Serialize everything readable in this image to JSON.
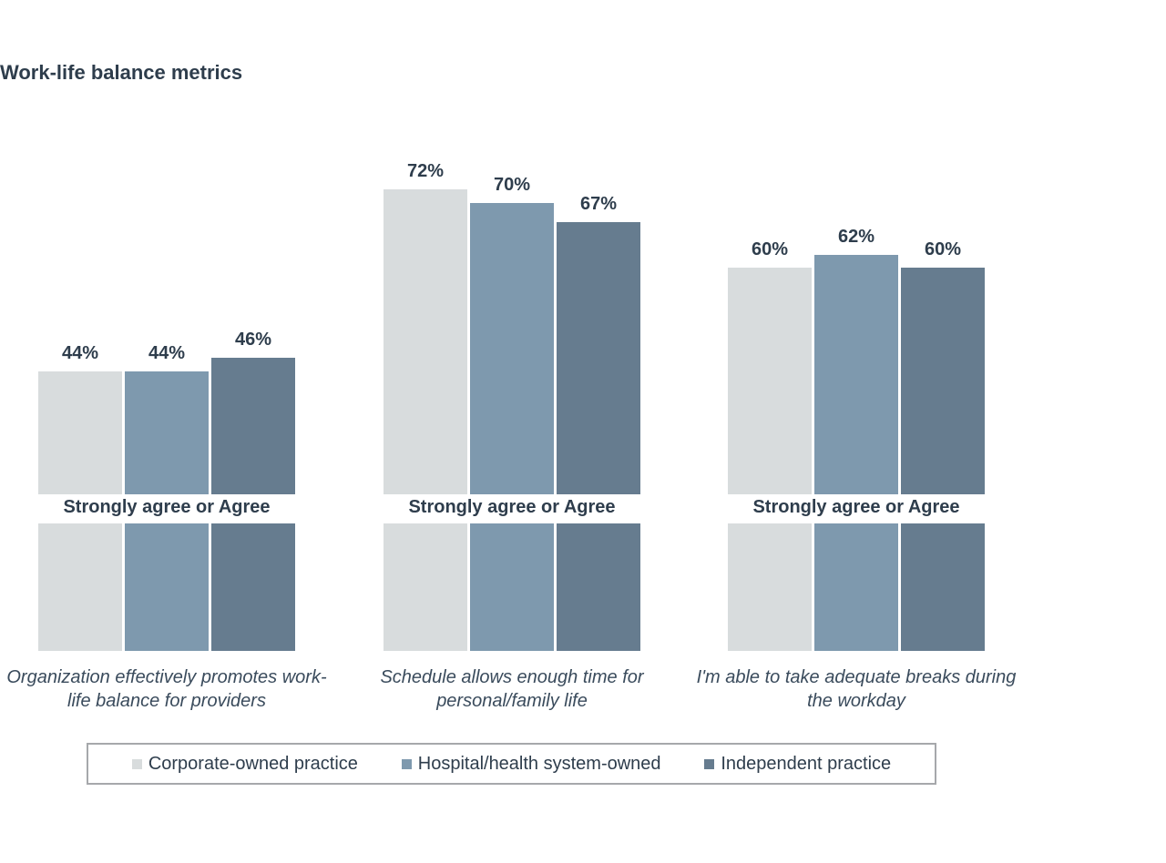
{
  "title": "Work-life balance metrics",
  "colors": {
    "background": "#FFFFFF",
    "text": "#2E3D4C",
    "legend_border": "#A6A8AB",
    "series_light": "#D8DCDD",
    "series_medium": "#7E99AE",
    "series_dark": "#667C8F"
  },
  "chart_data": {
    "type": "bar",
    "title": "Work-life balance metrics",
    "group_band_label": "Strongly agree or Agree",
    "value_suffix": "%",
    "categories": [
      "Organization effectively promotes work-life balance for providers",
      "Schedule allows enough time for personal/family life",
      "I'm able to take adequate breaks during the workday"
    ],
    "category_lines": [
      [
        "Organization effectively promotes work-",
        "life balance for providers"
      ],
      [
        "Schedule allows enough time for",
        "personal/family life"
      ],
      [
        "I'm able to take adequate breaks during",
        "the workday"
      ]
    ],
    "series": [
      {
        "name": "Corporate-owned practice",
        "color": "#D8DCDD",
        "values": [
          44,
          72,
          60
        ]
      },
      {
        "name": "Hospital/health system-owned",
        "color": "#7E99AE",
        "values": [
          44,
          70,
          62
        ]
      },
      {
        "name": "Independent practice",
        "color": "#667C8F",
        "values": [
          46,
          67,
          60
        ]
      }
    ],
    "value_axis_hidden": true,
    "approx_value_axis_range": [
      25,
      100
    ],
    "grid": false,
    "legend_position": "bottom",
    "bottom_band": {
      "equal_height_blocks": true,
      "note_visible_text_only": ""
    }
  },
  "legend": {
    "items": [
      {
        "label": "Corporate-owned practice",
        "color": "#D8DCDD"
      },
      {
        "label": "Hospital/health system-owned",
        "color": "#7E99AE"
      },
      {
        "label": "Independent practice",
        "color": "#667C8F"
      }
    ]
  }
}
